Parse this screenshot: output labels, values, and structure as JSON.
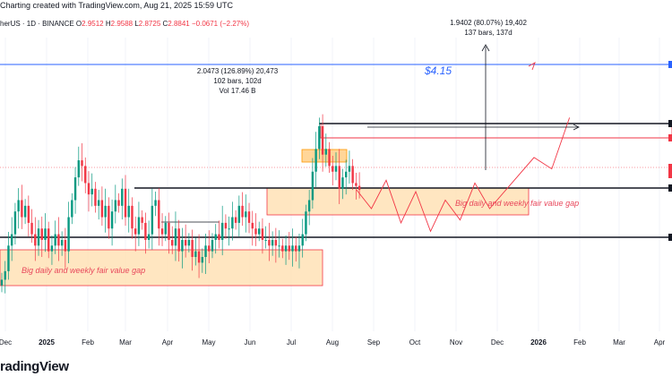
{
  "header": {
    "title": "Charting created with TradingView.com, Aug 21, 2025 15:59 UTC"
  },
  "symbol": {
    "name": "herUS · 1D · BINANCE",
    "o_label": "O",
    "o_value": "2.9512",
    "h_label": "H",
    "h_value": "2.9588",
    "l_label": "L",
    "l_value": "2.8725",
    "c_label": "C",
    "c_value": "2.8841",
    "change": "−0.0671 (−2.27%)"
  },
  "measurements": {
    "m1_line1": "2.0473 (126.89%) 20,473",
    "m1_line2": "102 bars, 102d",
    "m1_line3": "Vol 17.46 B",
    "m2_line1": "1.9402 (80.07%) 19,402",
    "m2_line2": "137 bars, 137d"
  },
  "annotations": {
    "target_price": "$4.15",
    "fvg_lower": "Big daily and weekly fair value gap",
    "fvg_upper": "Big daily and weekly fair value gap"
  },
  "logo_text": "radingView",
  "colors": {
    "up": "#089981",
    "down": "#f23645",
    "blue_line": "#2962ff",
    "fvg_fill": "#ffe0b2",
    "fvg_border": "#f23645",
    "projection": "#f23645"
  },
  "chart_data": {
    "type": "candlestick",
    "x_tick_labels": [
      "Dec",
      "2025",
      "Feb",
      "Mar",
      "Apr",
      "May",
      "Jun",
      "Jul",
      "Aug",
      "Sep",
      "Oct",
      "Nov",
      "Dec",
      "2026",
      "Feb",
      "Mar",
      "Apr"
    ],
    "x_tick_bold": [
      "2025",
      "2026"
    ],
    "last_close": 2.8841,
    "horizontal_levels": [
      {
        "kind": "target",
        "color": "blue",
        "value": 4.15
      },
      {
        "kind": "resistance",
        "color": "black",
        "value": 3.4
      },
      {
        "kind": "resistance",
        "color": "red",
        "value": 3.2
      },
      {
        "kind": "support",
        "color": "black",
        "value": 2.55
      },
      {
        "kind": "support",
        "color": "black",
        "value": 1.7
      }
    ],
    "candles_close": [
      1.3,
      1.45,
      1.9,
      2.1,
      2.5,
      2.7,
      2.4,
      2.6,
      2.3,
      2.1,
      1.9,
      2.2,
      2.0,
      2.2,
      1.8,
      1.9,
      2.1,
      1.9,
      2.0,
      1.8,
      2.4,
      2.7,
      3.1,
      3.4,
      3.3,
      3.0,
      2.8,
      2.9,
      2.6,
      2.7,
      2.4,
      2.6,
      2.2,
      2.5,
      2.7,
      2.6,
      2.9,
      2.4,
      2.6,
      2.2,
      2.1,
      2.4,
      2.3,
      2.0,
      2.1,
      2.6,
      2.7,
      2.2,
      2.1,
      2.3,
      2.0,
      1.9,
      2.2,
      1.8,
      2.0,
      1.9,
      2.0,
      1.7,
      1.8,
      1.6,
      1.7,
      1.9,
      1.8,
      2.0,
      2.1,
      2.0,
      2.3,
      2.2,
      2.2,
      2.4,
      2.3,
      2.6,
      2.4,
      2.5,
      2.3,
      2.2,
      2.1,
      2.2,
      2.0,
      2.0,
      1.9,
      2.0,
      1.9,
      1.9,
      1.8,
      1.9,
      1.8,
      1.9,
      1.8,
      1.9,
      2.1,
      2.5,
      2.7,
      3.2,
      3.6,
      4.0,
      3.5,
      3.6,
      3.3,
      3.2,
      3.3,
      2.9,
      3.1,
      3.2,
      3.3,
      3.0,
      2.95,
      2.88
    ],
    "projection_path": [
      [
        2.88,
        0
      ],
      [
        2.55,
        1
      ],
      [
        3.05,
        2
      ],
      [
        2.3,
        3
      ],
      [
        2.85,
        4
      ],
      [
        2.15,
        5
      ],
      [
        2.7,
        6
      ],
      [
        2.35,
        7
      ],
      [
        3.0,
        8
      ],
      [
        2.55,
        9
      ],
      [
        3.45,
        10
      ],
      [
        3.25,
        11
      ],
      [
        4.15,
        12
      ]
    ]
  }
}
